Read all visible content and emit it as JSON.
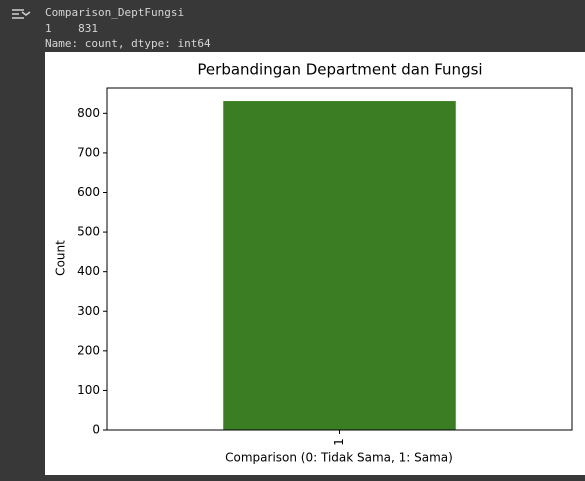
{
  "output": {
    "lines": [
      "Comparison_DeptFungsi",
      "1    831",
      "Name: count, dtype: int64"
    ]
  },
  "chart_data": {
    "type": "bar",
    "title": "Perbandingan Department dan Fungsi",
    "xlabel": "Comparison (0: Tidak Sama, 1: Sama)",
    "ylabel": "Count",
    "categories": [
      "1"
    ],
    "values": [
      831
    ],
    "color": "#3b7d23",
    "ylim": [
      0,
      864
    ],
    "yticks": [
      0,
      100,
      200,
      300,
      400,
      500,
      600,
      700,
      800
    ]
  }
}
